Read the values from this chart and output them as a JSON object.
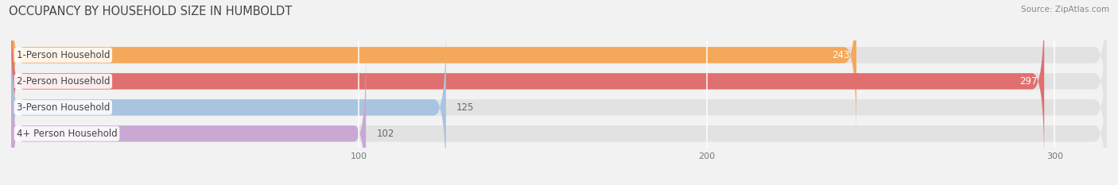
{
  "title": "OCCUPANCY BY HOUSEHOLD SIZE IN HUMBOLDT",
  "source": "Source: ZipAtlas.com",
  "categories": [
    "1-Person Household",
    "2-Person Household",
    "3-Person Household",
    "4+ Person Household"
  ],
  "values": [
    243,
    297,
    125,
    102
  ],
  "bar_colors": [
    "#F5A85A",
    "#E07070",
    "#A8C4E0",
    "#C9A8D4"
  ],
  "background_color": "#f2f2f2",
  "bar_background_color": "#e2e2e2",
  "xlim": [
    0,
    315
  ],
  "xticks": [
    100,
    200,
    300
  ],
  "title_fontsize": 10.5,
  "label_fontsize": 8.5,
  "value_fontsize": 8.5
}
